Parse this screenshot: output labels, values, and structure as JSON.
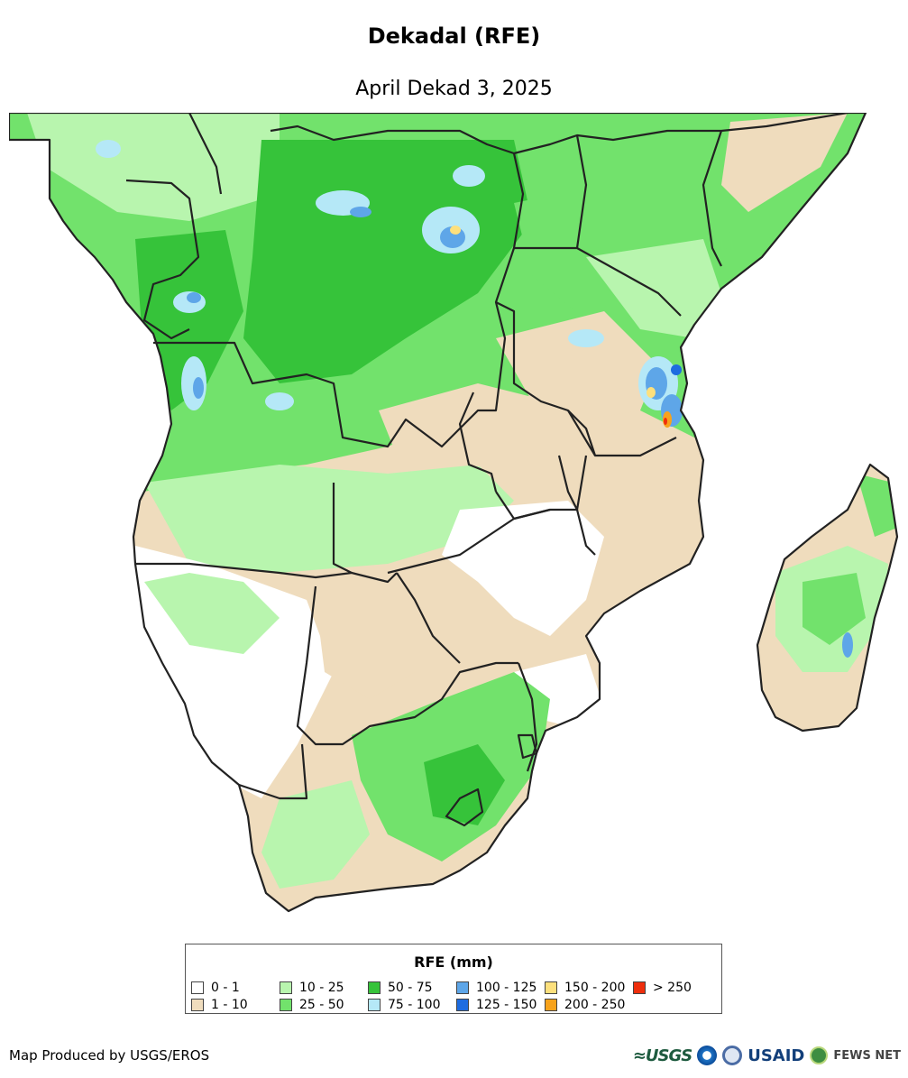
{
  "title": "Dekadal (RFE)",
  "subtitle": "April Dekad 3, 2025",
  "legend": {
    "title": "RFE (mm)",
    "items": [
      {
        "label": "0 - 1",
        "color": "#ffffff"
      },
      {
        "label": "1 - 10",
        "color": "#efdcbd"
      },
      {
        "label": "10 - 25",
        "color": "#b8f5ae"
      },
      {
        "label": "25 - 50",
        "color": "#72e26c"
      },
      {
        "label": "50 - 75",
        "color": "#36c33a"
      },
      {
        "label": "75 - 100",
        "color": "#b5e8f7"
      },
      {
        "label": "100 - 125",
        "color": "#5ea6e8"
      },
      {
        "label": "125 - 150",
        "color": "#1e6ce0"
      },
      {
        "label": "150 - 200",
        "color": "#fde07d"
      },
      {
        "label": "200 - 250",
        "color": "#f7a21b"
      },
      {
        "label": "> 250",
        "color": "#ee2e0c"
      }
    ]
  },
  "credit": "Map Produced by USGS/EROS",
  "logos": {
    "usgs": "≈USGS",
    "usaid": "USAID",
    "fews": "FEWS NET"
  }
}
